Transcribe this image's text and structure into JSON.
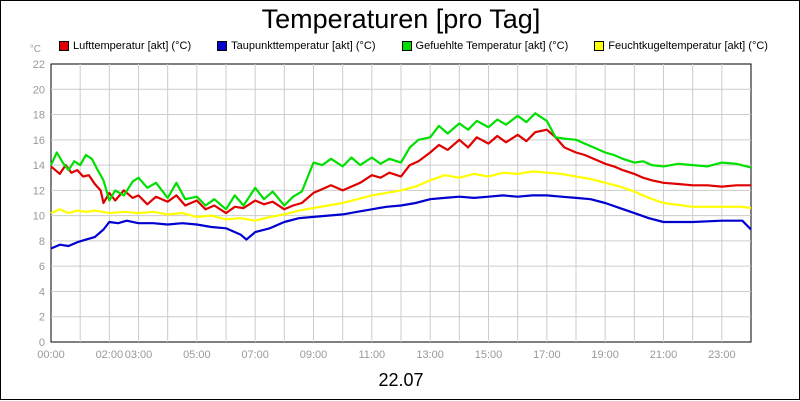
{
  "chart_data": {
    "type": "line",
    "title": "Temperaturen [pro Tag]",
    "xlabel": "22.07",
    "ylabel": "°C",
    "ylim": [
      0,
      22
    ],
    "y_ticks": [
      0,
      2,
      4,
      6,
      8,
      10,
      12,
      14,
      16,
      18,
      20,
      22
    ],
    "xlim": [
      0,
      24
    ],
    "x_ticks": [
      {
        "value": 0,
        "label": "00:00"
      },
      {
        "value": 2,
        "label": "02:00"
      },
      {
        "value": 3,
        "label": "03:00"
      },
      {
        "value": 5,
        "label": "05:00"
      },
      {
        "value": 7,
        "label": "07:00"
      },
      {
        "value": 9,
        "label": "09:00"
      },
      {
        "value": 11,
        "label": "11:00"
      },
      {
        "value": 13,
        "label": "13:00"
      },
      {
        "value": 15,
        "label": "15:00"
      },
      {
        "value": 17,
        "label": "17:00"
      },
      {
        "value": 19,
        "label": "19:00"
      },
      {
        "value": 21,
        "label": "21:00"
      },
      {
        "value": 23,
        "label": "23:00"
      }
    ],
    "grid": true,
    "legend_position": "top",
    "series": [
      {
        "name": "Lufttemperatur [akt] (°C)",
        "color": "#e00000",
        "x": [
          0,
          0.3,
          0.5,
          0.7,
          0.9,
          1.1,
          1.3,
          1.5,
          1.7,
          1.8,
          2.0,
          2.2,
          2.5,
          2.8,
          3.0,
          3.3,
          3.6,
          4.0,
          4.3,
          4.6,
          5.0,
          5.3,
          5.6,
          6.0,
          6.3,
          6.6,
          7.0,
          7.3,
          7.6,
          8.0,
          8.3,
          8.6,
          9.0,
          9.3,
          9.6,
          10.0,
          10.3,
          10.6,
          11.0,
          11.3,
          11.6,
          12.0,
          12.3,
          12.6,
          13.0,
          13.3,
          13.6,
          14.0,
          14.3,
          14.6,
          15.0,
          15.3,
          15.6,
          16.0,
          16.3,
          16.6,
          17.0,
          17.3,
          17.6,
          18.0,
          18.3,
          18.6,
          19.0,
          19.3,
          19.6,
          20.0,
          20.3,
          20.6,
          21.0,
          21.5,
          22.0,
          22.5,
          23.0,
          23.5,
          24.0
        ],
        "values": [
          13.9,
          13.3,
          14.0,
          13.4,
          13.6,
          13.1,
          13.2,
          12.5,
          12.0,
          11.0,
          11.8,
          11.2,
          12.0,
          11.4,
          11.6,
          10.9,
          11.5,
          11.1,
          11.6,
          10.8,
          11.2,
          10.5,
          10.8,
          10.2,
          10.7,
          10.6,
          11.2,
          10.9,
          11.1,
          10.5,
          10.8,
          11.0,
          11.8,
          12.1,
          12.4,
          12.0,
          12.3,
          12.6,
          13.2,
          13.0,
          13.4,
          13.1,
          14.0,
          14.3,
          15.0,
          15.6,
          15.2,
          16.0,
          15.4,
          16.2,
          15.7,
          16.3,
          15.8,
          16.4,
          15.9,
          16.6,
          16.8,
          16.2,
          15.4,
          15.0,
          14.8,
          14.5,
          14.1,
          13.9,
          13.6,
          13.3,
          13.0,
          12.8,
          12.6,
          12.5,
          12.4,
          12.4,
          12.3,
          12.4,
          12.4
        ]
      },
      {
        "name": "Taupunkttemperatur [akt] (°C)",
        "color": "#0000d0",
        "x": [
          0,
          0.3,
          0.6,
          0.9,
          1.2,
          1.5,
          1.8,
          2.0,
          2.3,
          2.6,
          3.0,
          3.5,
          4.0,
          4.5,
          5.0,
          5.5,
          6.0,
          6.5,
          6.7,
          7.0,
          7.5,
          8.0,
          8.5,
          9.0,
          9.5,
          10.0,
          10.5,
          11.0,
          11.5,
          12.0,
          12.5,
          13.0,
          13.5,
          14.0,
          14.5,
          15.0,
          15.5,
          16.0,
          16.5,
          17.0,
          17.5,
          18.0,
          18.5,
          19.0,
          19.5,
          20.0,
          20.5,
          21.0,
          22.0,
          23.0,
          23.7,
          24.0
        ],
        "values": [
          7.4,
          7.7,
          7.6,
          7.9,
          8.1,
          8.3,
          8.9,
          9.5,
          9.4,
          9.6,
          9.4,
          9.4,
          9.3,
          9.4,
          9.3,
          9.1,
          9.0,
          8.5,
          8.1,
          8.7,
          9.0,
          9.5,
          9.8,
          9.9,
          10.0,
          10.1,
          10.3,
          10.5,
          10.7,
          10.8,
          11.0,
          11.3,
          11.4,
          11.5,
          11.4,
          11.5,
          11.6,
          11.5,
          11.6,
          11.6,
          11.5,
          11.4,
          11.3,
          11.0,
          10.6,
          10.2,
          9.8,
          9.5,
          9.5,
          9.6,
          9.6,
          8.9
        ]
      },
      {
        "name": "Gefuehlte Temperatur [akt] (°C)",
        "color": "#00e000",
        "x": [
          0,
          0.2,
          0.4,
          0.6,
          0.8,
          1.0,
          1.2,
          1.4,
          1.6,
          1.8,
          2.0,
          2.2,
          2.5,
          2.8,
          3.0,
          3.3,
          3.6,
          4.0,
          4.3,
          4.6,
          5.0,
          5.3,
          5.6,
          6.0,
          6.3,
          6.6,
          7.0,
          7.3,
          7.6,
          8.0,
          8.3,
          8.6,
          9.0,
          9.3,
          9.6,
          10.0,
          10.3,
          10.6,
          11.0,
          11.3,
          11.6,
          12.0,
          12.3,
          12.6,
          13.0,
          13.3,
          13.6,
          14.0,
          14.3,
          14.6,
          15.0,
          15.3,
          15.6,
          16.0,
          16.3,
          16.6,
          17.0,
          17.3,
          17.6,
          18.0,
          18.3,
          18.6,
          19.0,
          19.3,
          19.6,
          20.0,
          20.3,
          20.6,
          21.0,
          21.5,
          22.0,
          22.5,
          23.0,
          23.5,
          24.0
        ],
        "values": [
          14.0,
          15.0,
          14.2,
          13.6,
          14.3,
          14.0,
          14.8,
          14.5,
          13.6,
          12.8,
          11.2,
          12.0,
          11.6,
          12.7,
          13.0,
          12.2,
          12.6,
          11.4,
          12.6,
          11.3,
          11.5,
          10.8,
          11.3,
          10.5,
          11.6,
          10.8,
          12.2,
          11.3,
          11.9,
          10.8,
          11.5,
          11.9,
          14.2,
          14.0,
          14.5,
          13.9,
          14.6,
          14.0,
          14.6,
          14.1,
          14.5,
          14.2,
          15.4,
          16.0,
          16.2,
          17.1,
          16.5,
          17.3,
          16.8,
          17.5,
          17.0,
          17.6,
          17.2,
          17.9,
          17.4,
          18.1,
          17.5,
          16.2,
          16.1,
          16.0,
          15.7,
          15.4,
          15.0,
          14.8,
          14.5,
          14.2,
          14.3,
          14.0,
          13.9,
          14.1,
          14.0,
          13.9,
          14.2,
          14.1,
          13.8
        ]
      },
      {
        "name": "Feuchtkugeltemperatur [akt] (°C)",
        "color": "#ffff00",
        "x": [
          0,
          0.3,
          0.6,
          0.9,
          1.2,
          1.5,
          2.0,
          2.5,
          3.0,
          3.5,
          4.0,
          4.5,
          5.0,
          5.5,
          6.0,
          6.5,
          7.0,
          7.5,
          8.0,
          8.5,
          9.0,
          9.5,
          10.0,
          10.5,
          11.0,
          11.5,
          12.0,
          12.5,
          13.0,
          13.5,
          14.0,
          14.5,
          15.0,
          15.5,
          16.0,
          16.5,
          17.0,
          17.5,
          18.0,
          18.5,
          19.0,
          19.5,
          20.0,
          20.5,
          21.0,
          22.0,
          23.0,
          23.7,
          24.0
        ],
        "values": [
          10.2,
          10.5,
          10.2,
          10.4,
          10.3,
          10.4,
          10.2,
          10.3,
          10.2,
          10.3,
          10.1,
          10.2,
          9.9,
          10.0,
          9.7,
          9.8,
          9.6,
          9.9,
          10.1,
          10.4,
          10.6,
          10.8,
          11.0,
          11.3,
          11.6,
          11.8,
          12.0,
          12.3,
          12.8,
          13.2,
          13.0,
          13.3,
          13.1,
          13.4,
          13.3,
          13.5,
          13.4,
          13.3,
          13.1,
          12.9,
          12.6,
          12.3,
          11.9,
          11.4,
          11.0,
          10.7,
          10.7,
          10.7,
          10.6
        ]
      }
    ]
  }
}
